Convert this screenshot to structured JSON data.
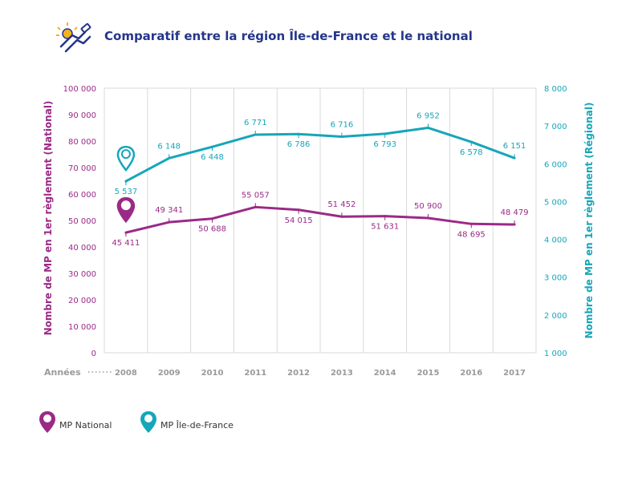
{
  "header": {
    "title": "Comparatif entre la région Île-de-France et le national",
    "logo_icon": "handshake-icon"
  },
  "colors": {
    "national": "#9b2a86",
    "regional": "#16a6b9",
    "title": "#24358a",
    "grid": "#d9d9d9",
    "axis_label": "#9a9a9a"
  },
  "chart_data": {
    "type": "line",
    "title": "Comparatif entre la région Île-de-France et le national",
    "x_axis_label": "Années",
    "x": [
      "2008",
      "2009",
      "2010",
      "2011",
      "2012",
      "2013",
      "2014",
      "2015",
      "2016",
      "2017"
    ],
    "y_left": {
      "label": "Nombre de MP en 1er règlement (National)",
      "range": [
        0,
        100000
      ],
      "ticks": [
        "0",
        "10 000",
        "20 000",
        "30 000",
        "40 000",
        "50 000",
        "60 000",
        "70 000",
        "80 000",
        "90 000",
        "100 000"
      ]
    },
    "y_right": {
      "label": "Nombre de MP en 1er règlement  (Régional)",
      "range": [
        1000,
        8000
      ],
      "ticks": [
        "1 000",
        "2 000",
        "3 000",
        "4 000",
        "5 000",
        "6 000",
        "7 000",
        "8 000"
      ]
    },
    "series": [
      {
        "name": "MP National",
        "axis": "left",
        "values": [
          45411,
          49341,
          50688,
          55057,
          54015,
          51452,
          51631,
          50900,
          48695,
          48479
        ],
        "labels": [
          "45 411",
          "49 341",
          "50 688",
          "55 057",
          "54 015",
          "51 452",
          "51 631",
          "50 900",
          "48 695",
          "48 479"
        ],
        "label_pos": [
          "below",
          "above",
          "below",
          "above",
          "below",
          "above",
          "below",
          "above",
          "below",
          "above"
        ],
        "icon": "map-pin-icon"
      },
      {
        "name": "MP Île-de-France",
        "axis": "right",
        "values": [
          5537,
          6148,
          6448,
          6771,
          6786,
          6716,
          6793,
          6952,
          6578,
          6151
        ],
        "labels": [
          "5 537",
          "6 148",
          "6 448",
          "6 771",
          "6 786",
          "6 716",
          "6 793",
          "6 952",
          "6 578",
          "6 151"
        ],
        "label_pos": [
          "below",
          "above",
          "below",
          "above",
          "below",
          "above",
          "below",
          "above",
          "below",
          "above"
        ],
        "icon": "map-pin-icon"
      }
    ]
  },
  "legend": [
    {
      "label": "MP National",
      "icon": "map-pin-icon"
    },
    {
      "label": "MP Île-de-France",
      "icon": "map-pin-icon"
    }
  ]
}
